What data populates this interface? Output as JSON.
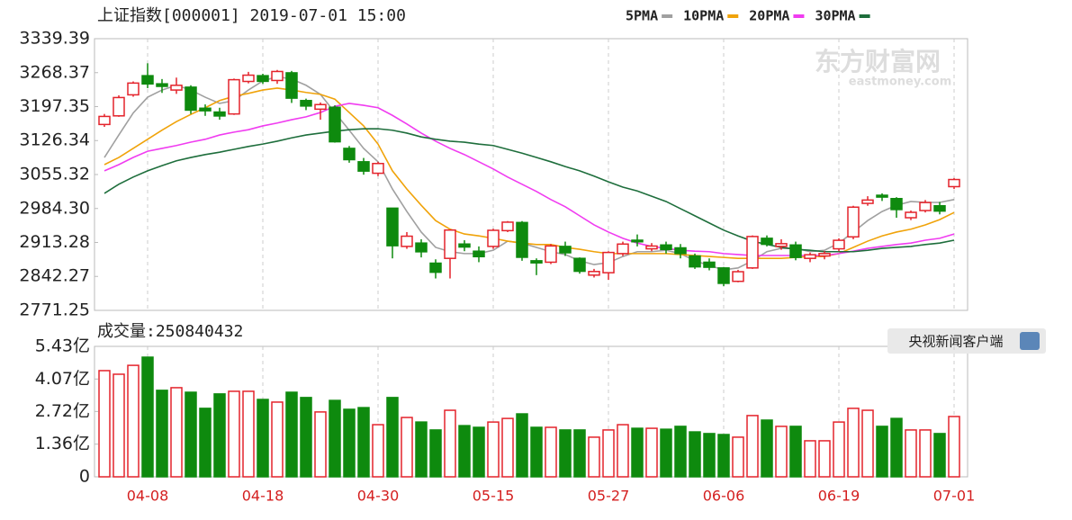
{
  "watermark": {
    "name": "东方财富网",
    "url": "eastmoney.com"
  },
  "badge": "央视新闻客户端",
  "chart_data": {
    "type": "candlestick",
    "title": "上证指数[000001] 2019-07-01 15:00",
    "up_color": "#e4232b",
    "down_color": "#0e8a0e",
    "categories": [
      null,
      null,
      null,
      "04-08",
      null,
      null,
      null,
      null,
      null,
      null,
      null,
      "04-18",
      null,
      null,
      null,
      null,
      null,
      null,
      null,
      "04-30",
      null,
      null,
      null,
      null,
      null,
      null,
      null,
      "05-15",
      null,
      null,
      null,
      null,
      null,
      null,
      null,
      "05-27",
      null,
      null,
      null,
      null,
      null,
      null,
      null,
      "06-06",
      null,
      null,
      null,
      null,
      null,
      null,
      null,
      "06-19",
      null,
      null,
      null,
      null,
      null,
      null,
      null,
      "07-01"
    ],
    "open": [
      3160,
      3178,
      3222,
      3262,
      3245,
      3232,
      3238,
      3194,
      3186,
      3182,
      3250,
      3262,
      3252,
      3268,
      3210,
      3192,
      3196,
      3110,
      3082,
      3058,
      2985,
      2905,
      2912,
      2870,
      2880,
      2910,
      2895,
      2905,
      2938,
      2955,
      2875,
      2872,
      2905,
      2880,
      2845,
      2850,
      2890,
      2918,
      2900,
      2908,
      2902,
      2885,
      2872,
      2860,
      2832,
      2860,
      2922,
      2905,
      2908,
      2880,
      2885,
      2900,
      2925,
      2995,
      3012,
      3005,
      2965,
      2980,
      2990,
      3030
    ],
    "high": [
      3182,
      3221,
      3250,
      3288,
      3255,
      3258,
      3242,
      3202,
      3195,
      3256,
      3270,
      3266,
      3274,
      3272,
      3214,
      3206,
      3200,
      3115,
      3090,
      3082,
      2985,
      2935,
      2920,
      2878,
      2940,
      2918,
      2905,
      2942,
      2958,
      2958,
      2880,
      2910,
      2915,
      2882,
      2858,
      2895,
      2915,
      2930,
      2912,
      2915,
      2910,
      2890,
      2880,
      2862,
      2856,
      2928,
      2928,
      2920,
      2915,
      2892,
      2895,
      2922,
      2990,
      3010,
      3016,
      3008,
      2980,
      3002,
      2998,
      3048
    ],
    "low": [
      3155,
      3176,
      3218,
      3236,
      3226,
      3224,
      3182,
      3178,
      3170,
      3180,
      3246,
      3245,
      3245,
      3205,
      3190,
      3170,
      3122,
      3080,
      3055,
      3052,
      2880,
      2900,
      2882,
      2838,
      2838,
      2895,
      2872,
      2900,
      2935,
      2875,
      2845,
      2868,
      2885,
      2848,
      2840,
      2835,
      2885,
      2905,
      2895,
      2890,
      2880,
      2858,
      2855,
      2822,
      2830,
      2858,
      2905,
      2898,
      2876,
      2872,
      2878,
      2895,
      2920,
      2990,
      3000,
      2965,
      2960,
      2976,
      2972,
      3025
    ],
    "close": [
      3176.82,
      3216.3,
      3246.57,
      3244.81,
      3239.66,
      3241.93,
      3189.96,
      3188.63,
      3177.79,
      3253.6,
      3263.12,
      3250.2,
      3270.8,
      3215.04,
      3198.59,
      3201.61,
      3123.83,
      3086.4,
      3062.5,
      3078.34,
      2906.46,
      2926.39,
      2893.76,
      2850.95,
      2939.21,
      2903.71,
      2883.61,
      2938.68,
      2955.71,
      2882.3,
      2870.6,
      2905.97,
      2891.7,
      2852.99,
      2852.52,
      2892.38,
      2909.91,
      2914.7,
      2905.81,
      2898.7,
      2890.08,
      2862.28,
      2861.42,
      2827.8,
      2852.13,
      2925.72,
      2909.38,
      2910.74,
      2881.97,
      2887.62,
      2890.16,
      2917.8,
      2987.12,
      3001.98,
      3008.15,
      2982.07,
      2976.28,
      2996.79,
      2978.88,
      3044.9
    ],
    "ylim": [
      2771.25,
      3339.39
    ],
    "yticks": [
      2771.25,
      2842.27,
      2913.28,
      {
        "value": 2984.3,
        "label": "2984.30"
      },
      3055.32,
      3126.34,
      3197.35,
      3268.37,
      3339.39
    ],
    "series": [
      {
        "name": "5PMA",
        "color": "#a0a0a0",
        "values": [
          3091,
          3138,
          3184,
          3217,
          3232,
          3242,
          3232,
          3217,
          3204,
          3210,
          3232,
          3251,
          3260,
          3255,
          3242,
          3223,
          3185,
          3148,
          3110,
          3082,
          3025,
          2978,
          2935,
          2903,
          2894,
          2890,
          2890,
          2897,
          2916,
          2912,
          2903,
          2894,
          2888,
          2875,
          2867,
          2871,
          2884,
          2894,
          2894,
          2897,
          2890,
          2875,
          2865,
          2856,
          2860,
          2875,
          2894,
          2901,
          2901,
          2894,
          2897,
          2912,
          2935,
          2959,
          2978,
          2991,
          2999,
          2997,
          2997,
          3003
        ]
      },
      {
        "name": "10PMA",
        "color": "#f0a30a",
        "values": [
          3076,
          3091,
          3110,
          3129,
          3148,
          3166,
          3181,
          3195,
          3210,
          3219,
          3225,
          3232,
          3236,
          3232,
          3227,
          3223,
          3213,
          3185,
          3157,
          3119,
          3063,
          3025,
          2991,
          2959,
          2941,
          2931,
          2927,
          2922,
          2916,
          2912,
          2909,
          2909,
          2903,
          2899,
          2894,
          2890,
          2890,
          2890,
          2890,
          2890,
          2888,
          2886,
          2884,
          2882,
          2880,
          2880,
          2880,
          2880,
          2882,
          2884,
          2884,
          2890,
          2903,
          2916,
          2927,
          2935,
          2941,
          2950,
          2961,
          2976
        ]
      },
      {
        "name": "20PMA",
        "color": "#f03cf0",
        "values": [
          3063,
          3076,
          3091,
          3104,
          3110,
          3116,
          3123,
          3129,
          3138,
          3144,
          3149,
          3157,
          3163,
          3170,
          3176,
          3185,
          3198,
          3204,
          3200,
          3195,
          3179,
          3161,
          3142,
          3125,
          3110,
          3097,
          3082,
          3067,
          3050,
          3035,
          3020,
          3003,
          2988,
          2969,
          2950,
          2935,
          2922,
          2912,
          2905,
          2901,
          2897,
          2895,
          2894,
          2890,
          2888,
          2886,
          2886,
          2886,
          2886,
          2886,
          2886,
          2890,
          2895,
          2901,
          2905,
          2909,
          2912,
          2918,
          2922,
          2931
        ]
      },
      {
        "name": "30PMA",
        "color": "#1e6e3c",
        "values": [
          3016,
          3035,
          3050,
          3063,
          3074,
          3084,
          3091,
          3097,
          3102,
          3108,
          3114,
          3119,
          3125,
          3132,
          3138,
          3142,
          3146,
          3149,
          3151,
          3151,
          3148,
          3142,
          3134,
          3129,
          3125,
          3123,
          3119,
          3116,
          3108,
          3100,
          3091,
          3082,
          3072,
          3063,
          3052,
          3040,
          3029,
          3021,
          3010,
          2999,
          2984,
          2969,
          2954,
          2939,
          2927,
          2916,
          2909,
          2903,
          2899,
          2897,
          2894,
          2894,
          2894,
          2897,
          2901,
          2903,
          2905,
          2909,
          2912,
          2918
        ]
      }
    ],
    "volume": {
      "title": "成交量:250840432",
      "values": [
        4.42,
        4.27,
        4.64,
        4.98,
        3.6,
        3.71,
        3.52,
        2.85,
        3.45,
        3.56,
        3.56,
        3.22,
        3.11,
        3.52,
        3.3,
        2.7,
        3.18,
        2.81,
        2.88,
        2.17,
        3.3,
        2.47,
        2.28,
        1.95,
        2.77,
        2.13,
        2.06,
        2.28,
        2.43,
        2.62,
        2.06,
        2.06,
        1.95,
        1.95,
        1.65,
        1.95,
        2.17,
        2.02,
        2.02,
        1.98,
        2.1,
        1.87,
        1.8,
        1.76,
        1.65,
        2.55,
        2.36,
        2.1,
        2.1,
        1.5,
        1.5,
        2.28,
        2.85,
        2.77,
        2.1,
        2.43,
        1.95,
        1.95,
        1.8,
        2.51
      ],
      "ylim": [
        0,
        5.43
      ],
      "yticks": [
        0,
        {
          "value": 1.36,
          "label": "1.36亿"
        },
        {
          "value": 2.72,
          "label": "2.72亿"
        },
        {
          "value": 4.07,
          "label": "4.07亿"
        },
        {
          "value": 5.43,
          "label": "5.43亿"
        }
      ]
    }
  }
}
